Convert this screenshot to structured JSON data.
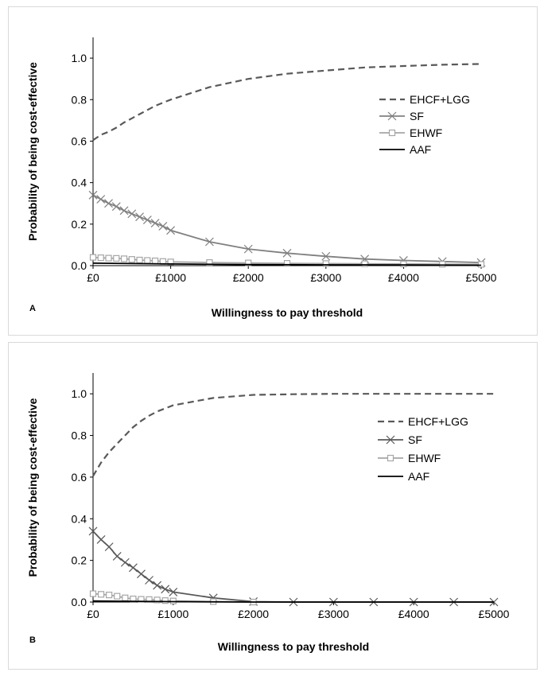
{
  "chart_data": [
    {
      "type": "line",
      "panel_label": "A",
      "xlabel": "Willingness to pay threshold",
      "ylabel": "Probability of being cost-effective",
      "xlim": [
        0,
        5000
      ],
      "ylim": [
        0,
        1.1
      ],
      "x_ticks": [
        0,
        1000,
        2000,
        3000,
        4000,
        5000
      ],
      "x_tick_labels": [
        "£0",
        "£1000",
        "£2000",
        "£3000",
        "£4000",
        "£5000"
      ],
      "y_ticks": [
        0,
        0.2,
        0.4,
        0.6,
        0.8,
        1.0
      ],
      "y_tick_labels": [
        "0.0",
        "0.2",
        "0.4",
        "0.6",
        "0.8",
        "1.0"
      ],
      "legend_position": "right",
      "series": [
        {
          "name": "EHCF+LGG",
          "style": "dashed",
          "marker": "none",
          "color": "#595959",
          "x": [
            0,
            100,
            200,
            300,
            400,
            500,
            600,
            700,
            800,
            900,
            1000,
            1500,
            2000,
            2500,
            3000,
            3500,
            4000,
            4500,
            5000
          ],
          "y": [
            0.605,
            0.63,
            0.645,
            0.665,
            0.69,
            0.71,
            0.73,
            0.75,
            0.77,
            0.785,
            0.8,
            0.86,
            0.9,
            0.925,
            0.94,
            0.955,
            0.962,
            0.968,
            0.972
          ]
        },
        {
          "name": "SF",
          "style": "solid",
          "marker": "x",
          "color": "#808080",
          "x": [
            0,
            100,
            200,
            300,
            400,
            500,
            600,
            700,
            800,
            900,
            1000,
            1500,
            2000,
            2500,
            3000,
            3500,
            4000,
            4500,
            5000
          ],
          "y": [
            0.34,
            0.32,
            0.3,
            0.285,
            0.265,
            0.25,
            0.235,
            0.22,
            0.205,
            0.19,
            0.17,
            0.115,
            0.08,
            0.06,
            0.045,
            0.032,
            0.025,
            0.02,
            0.015
          ]
        },
        {
          "name": "EHWF",
          "style": "solid",
          "marker": "square",
          "color": "#a6a6a6",
          "x": [
            0,
            100,
            200,
            300,
            400,
            500,
            600,
            700,
            800,
            900,
            1000,
            1500,
            2000,
            2500,
            3000,
            3500,
            4000,
            4500,
            5000
          ],
          "y": [
            0.04,
            0.038,
            0.036,
            0.035,
            0.033,
            0.03,
            0.027,
            0.025,
            0.023,
            0.02,
            0.018,
            0.015,
            0.013,
            0.011,
            0.01,
            0.009,
            0.008,
            0.007,
            0.006
          ]
        },
        {
          "name": "AAF",
          "style": "solid",
          "marker": "none",
          "color": "#000000",
          "x": [
            0,
            1000,
            2000,
            3000,
            4000,
            5000
          ],
          "y": [
            0.012,
            0.008,
            0.005,
            0.004,
            0.003,
            0.002
          ]
        }
      ]
    },
    {
      "type": "line",
      "panel_label": "B",
      "xlabel": "Willingness to pay threshold",
      "ylabel": "Probability of being cost-effective",
      "xlim": [
        0,
        5000
      ],
      "ylim": [
        0,
        1.1
      ],
      "x_ticks": [
        0,
        1000,
        2000,
        3000,
        4000,
        5000
      ],
      "x_tick_labels": [
        "£0",
        "£1000",
        "£2000",
        "£3000",
        "£4000",
        "£5000"
      ],
      "y_ticks": [
        0,
        0.2,
        0.4,
        0.6,
        0.8,
        1.0
      ],
      "y_tick_labels": [
        "0.0",
        "0.2",
        "0.4",
        "0.6",
        "0.8",
        "1.0"
      ],
      "legend_position": "right",
      "series": [
        {
          "name": "EHCF+LGG",
          "style": "dashed",
          "marker": "none",
          "color": "#595959",
          "x": [
            0,
            100,
            200,
            300,
            400,
            500,
            600,
            700,
            800,
            900,
            1000,
            1500,
            2000,
            2500,
            3000,
            3500,
            4000,
            4500,
            5000
          ],
          "y": [
            0.605,
            0.67,
            0.72,
            0.76,
            0.8,
            0.84,
            0.87,
            0.895,
            0.915,
            0.93,
            0.945,
            0.98,
            0.995,
            0.998,
            1.0,
            1.0,
            1.0,
            1.0,
            1.0
          ]
        },
        {
          "name": "SF",
          "style": "solid",
          "marker": "x",
          "color": "#595959",
          "x": [
            0,
            100,
            200,
            300,
            400,
            500,
            600,
            700,
            800,
            900,
            1000,
            1500,
            2000,
            2500,
            3000,
            3500,
            4000,
            4500,
            5000
          ],
          "y": [
            0.34,
            0.3,
            0.265,
            0.22,
            0.19,
            0.165,
            0.135,
            0.105,
            0.08,
            0.062,
            0.048,
            0.02,
            0.002,
            0.0,
            0.0,
            0.0,
            0.0,
            0.0,
            0.0
          ]
        },
        {
          "name": "EHWF",
          "style": "solid",
          "marker": "square",
          "color": "#a6a6a6",
          "x": [
            0,
            100,
            200,
            300,
            400,
            500,
            600,
            700,
            800,
            900,
            1000,
            1500,
            2000
          ],
          "y": [
            0.04,
            0.037,
            0.034,
            0.028,
            0.02,
            0.015,
            0.013,
            0.012,
            0.01,
            0.007,
            0.005,
            0.002,
            0.0
          ]
        },
        {
          "name": "AAF",
          "style": "solid",
          "marker": "none",
          "color": "#000000",
          "x": [
            0,
            1000,
            2000,
            3000,
            4000,
            5000
          ],
          "y": [
            0.005,
            0.002,
            0.0,
            0.0,
            0.0,
            0.0
          ]
        }
      ]
    }
  ]
}
